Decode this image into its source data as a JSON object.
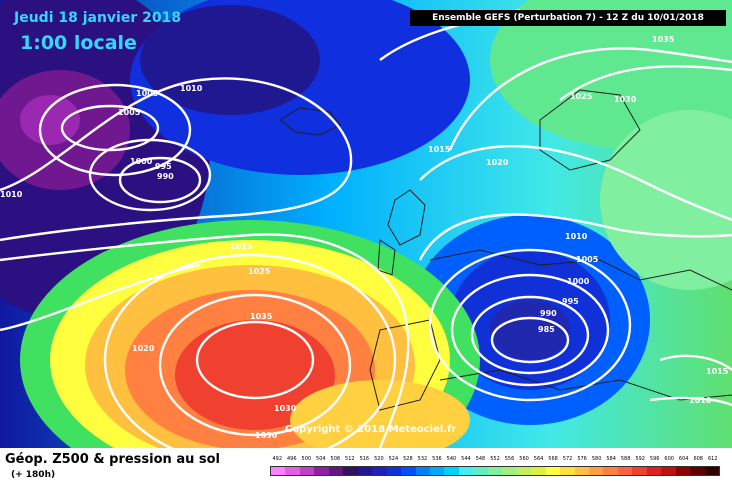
{
  "header": {
    "date": "Jeudi 18 janvier 2018",
    "time": "1:00 locale",
    "model": "Ensemble GEFS  (Perturbation 7)  -  12 Z du 10/01/2018"
  },
  "copyright": "Copyright © 2018 Meteociel.fr",
  "footer": {
    "title": "Géop. Z500 & pression au sol",
    "lead": "(+ 180h)"
  },
  "isobar_labels": [
    "1005",
    "1010",
    "1005",
    "1000",
    "995",
    "990",
    "1010",
    "1015",
    "1025",
    "1035",
    "1020",
    "1035",
    "1030",
    "1025",
    "1030",
    "1015",
    "1020",
    "1010",
    "1005",
    "1000",
    "995",
    "990",
    "985",
    "1015",
    "1010",
    "1030"
  ],
  "color_scale": {
    "labels": [
      "492",
      "496",
      "500",
      "504",
      "508",
      "512",
      "516",
      "520",
      "524",
      "528",
      "532",
      "536",
      "540",
      "544",
      "548",
      "552",
      "556",
      "560",
      "564",
      "568",
      "572",
      "576",
      "580",
      "584",
      "588",
      "592",
      "596",
      "600",
      "604",
      "608",
      "612"
    ],
    "colors": [
      "#ff80ff",
      "#e060e0",
      "#c040c0",
      "#9020a0",
      "#601880",
      "#301060",
      "#201890",
      "#2020c0",
      "#1030e0",
      "#0050ff",
      "#0080ff",
      "#00a8ff",
      "#00d0ff",
      "#40f0f0",
      "#60f0c0",
      "#80f0a0",
      "#a0f080",
      "#c0f060",
      "#e0f040",
      "#ffff40",
      "#ffe040",
      "#ffc040",
      "#ffa040",
      "#ff8040",
      "#ff6040",
      "#f04030",
      "#e02020",
      "#c01010",
      "#900000",
      "#600000",
      "#300000"
    ]
  }
}
